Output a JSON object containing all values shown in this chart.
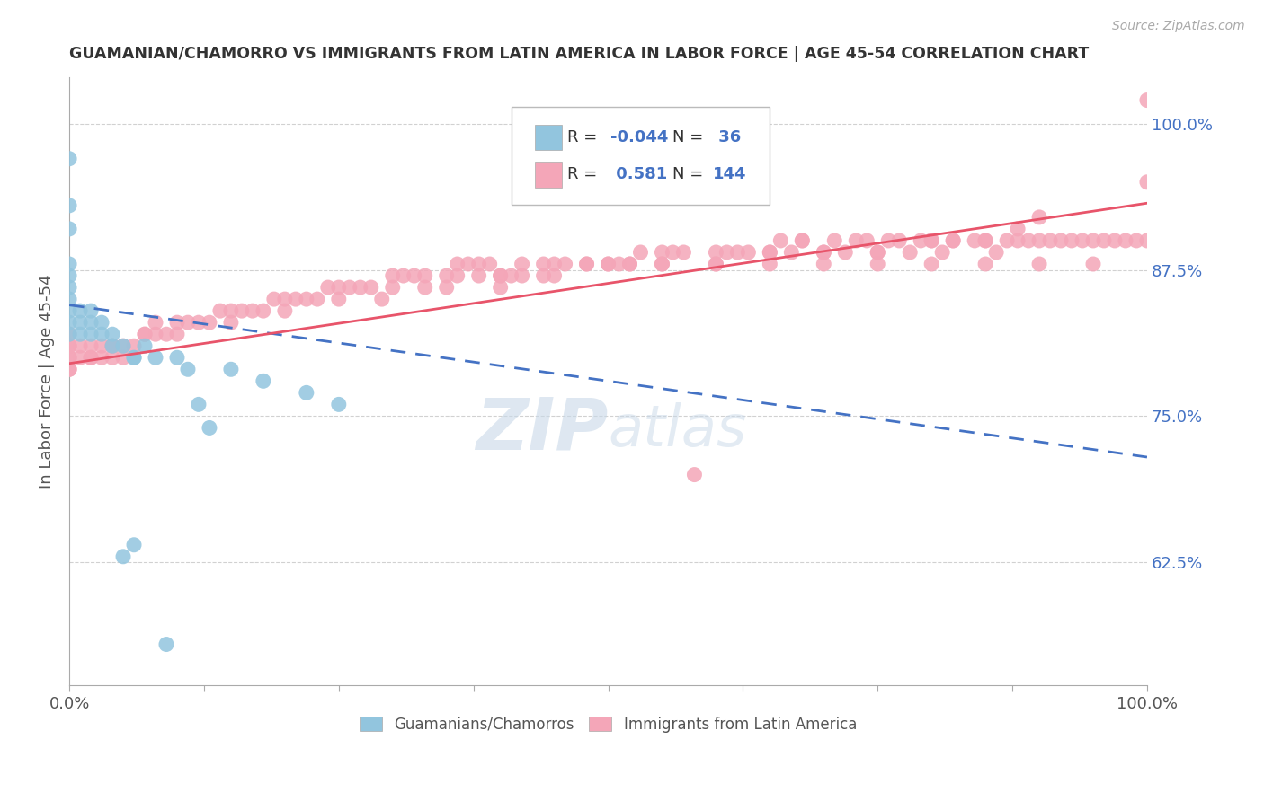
{
  "title": "GUAMANIAN/CHAMORRO VS IMMIGRANTS FROM LATIN AMERICA IN LABOR FORCE | AGE 45-54 CORRELATION CHART",
  "source": "Source: ZipAtlas.com",
  "ylabel": "In Labor Force | Age 45-54",
  "xmin": 0.0,
  "xmax": 1.0,
  "ymin": 0.52,
  "ymax": 1.04,
  "legend_R1": "-0.044",
  "legend_N1": "36",
  "legend_R2": "0.581",
  "legend_N2": "144",
  "blue_color": "#92c5de",
  "pink_color": "#f4a6b8",
  "blue_line_color": "#4472c4",
  "pink_line_color": "#e8546a",
  "watermark_color": "#c8d8e8",
  "blue_line_x0": 0.0,
  "blue_line_x1": 1.0,
  "blue_line_y0": 0.845,
  "blue_line_y1": 0.715,
  "pink_line_x0": 0.0,
  "pink_line_x1": 1.0,
  "pink_line_y0": 0.795,
  "pink_line_y1": 0.932,
  "blue_x": [
    0.0,
    0.0,
    0.0,
    0.0,
    0.0,
    0.0,
    0.0,
    0.0,
    0.0,
    0.0,
    0.01,
    0.01,
    0.01,
    0.02,
    0.02,
    0.02,
    0.03,
    0.03,
    0.04,
    0.04,
    0.05,
    0.06,
    0.06,
    0.07,
    0.08,
    0.09,
    0.11,
    0.13,
    0.15,
    0.18,
    0.22,
    0.25,
    0.05,
    0.06,
    0.1,
    0.12
  ],
  "blue_y": [
    0.97,
    0.93,
    0.91,
    0.88,
    0.87,
    0.86,
    0.85,
    0.84,
    0.83,
    0.82,
    0.84,
    0.83,
    0.82,
    0.84,
    0.83,
    0.82,
    0.83,
    0.82,
    0.82,
    0.81,
    0.81,
    0.8,
    0.8,
    0.81,
    0.8,
    0.555,
    0.79,
    0.74,
    0.79,
    0.78,
    0.77,
    0.76,
    0.63,
    0.64,
    0.8,
    0.76
  ],
  "pink_x": [
    0.0,
    0.0,
    0.0,
    0.01,
    0.01,
    0.02,
    0.02,
    0.03,
    0.03,
    0.04,
    0.04,
    0.05,
    0.05,
    0.06,
    0.07,
    0.08,
    0.09,
    0.1,
    0.11,
    0.12,
    0.13,
    0.14,
    0.15,
    0.16,
    0.18,
    0.19,
    0.2,
    0.21,
    0.22,
    0.24,
    0.25,
    0.26,
    0.27,
    0.28,
    0.3,
    0.31,
    0.32,
    0.33,
    0.35,
    0.36,
    0.37,
    0.38,
    0.39,
    0.4,
    0.41,
    0.42,
    0.44,
    0.45,
    0.46,
    0.48,
    0.5,
    0.51,
    0.52,
    0.53,
    0.55,
    0.56,
    0.57,
    0.58,
    0.6,
    0.61,
    0.62,
    0.63,
    0.65,
    0.66,
    0.67,
    0.68,
    0.7,
    0.71,
    0.72,
    0.74,
    0.75,
    0.76,
    0.78,
    0.79,
    0.8,
    0.81,
    0.82,
    0.84,
    0.85,
    0.86,
    0.87,
    0.88,
    0.89,
    0.9,
    0.91,
    0.92,
    0.93,
    0.94,
    0.95,
    0.96,
    0.97,
    0.98,
    0.99,
    1.0,
    0.52,
    0.48,
    0.44,
    0.4,
    0.36,
    0.3,
    0.23,
    0.17,
    0.08,
    0.6,
    0.55,
    0.5,
    0.45,
    0.42,
    0.38,
    0.33,
    0.29,
    0.25,
    0.2,
    0.15,
    0.1,
    0.07,
    0.04,
    0.02,
    0.0,
    0.0,
    0.0,
    0.0,
    0.65,
    0.68,
    0.7,
    0.73,
    0.75,
    0.77,
    0.8,
    0.82,
    0.85,
    0.88,
    0.9,
    0.55,
    0.6,
    0.65,
    0.7,
    0.75,
    0.8,
    0.85,
    0.9,
    0.95,
    1.0,
    1.0,
    0.35,
    0.4
  ],
  "pink_y": [
    0.81,
    0.8,
    0.79,
    0.81,
    0.8,
    0.8,
    0.81,
    0.8,
    0.81,
    0.8,
    0.81,
    0.8,
    0.81,
    0.81,
    0.82,
    0.82,
    0.82,
    0.83,
    0.83,
    0.83,
    0.83,
    0.84,
    0.84,
    0.84,
    0.84,
    0.85,
    0.85,
    0.85,
    0.85,
    0.86,
    0.86,
    0.86,
    0.86,
    0.86,
    0.87,
    0.87,
    0.87,
    0.87,
    0.87,
    0.88,
    0.88,
    0.88,
    0.88,
    0.87,
    0.87,
    0.88,
    0.88,
    0.88,
    0.88,
    0.88,
    0.88,
    0.88,
    0.88,
    0.89,
    0.89,
    0.89,
    0.89,
    0.7,
    0.89,
    0.89,
    0.89,
    0.89,
    0.89,
    0.9,
    0.89,
    0.9,
    0.89,
    0.9,
    0.89,
    0.9,
    0.89,
    0.9,
    0.89,
    0.9,
    0.9,
    0.89,
    0.9,
    0.9,
    0.9,
    0.89,
    0.9,
    0.9,
    0.9,
    0.9,
    0.9,
    0.9,
    0.9,
    0.9,
    0.9,
    0.9,
    0.9,
    0.9,
    0.9,
    0.9,
    0.88,
    0.88,
    0.87,
    0.87,
    0.87,
    0.86,
    0.85,
    0.84,
    0.83,
    0.88,
    0.88,
    0.88,
    0.87,
    0.87,
    0.87,
    0.86,
    0.85,
    0.85,
    0.84,
    0.83,
    0.82,
    0.82,
    0.81,
    0.8,
    0.8,
    0.79,
    0.82,
    0.81,
    0.89,
    0.9,
    0.89,
    0.9,
    0.89,
    0.9,
    0.9,
    0.9,
    0.9,
    0.91,
    0.92,
    0.88,
    0.88,
    0.88,
    0.88,
    0.88,
    0.88,
    0.88,
    0.88,
    0.88,
    1.02,
    0.95,
    0.86,
    0.86
  ]
}
